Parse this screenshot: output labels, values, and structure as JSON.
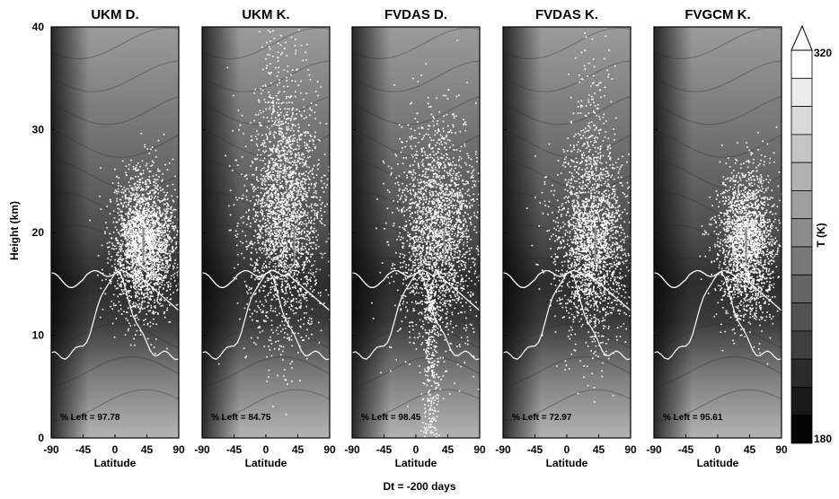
{
  "chart_data": {
    "type": "heatmap",
    "panels": [
      {
        "title": "UKM D.",
        "percent_left_label": "% Left = 97.78"
      },
      {
        "title": "UKM K.",
        "percent_left_label": "% Left = 84.75"
      },
      {
        "title": "FVDAS D.",
        "percent_left_label": "% Left = 98.45"
      },
      {
        "title": "FVDAS K.",
        "percent_left_label": "% Left = 72.97"
      },
      {
        "title": "FVGCM K.",
        "percent_left_label": "% Left = 95.61"
      }
    ],
    "xlabel": "Latitude",
    "ylabel": "Height (km)",
    "x_ticks": [
      "-90",
      "-45",
      "0",
      "45",
      "90"
    ],
    "x_tick_values": [
      -90,
      -45,
      0,
      45,
      90
    ],
    "y_ticks": [
      "0",
      "10",
      "20",
      "30",
      "40"
    ],
    "y_tick_values": [
      0,
      10,
      20,
      30,
      40
    ],
    "xlim": [
      -90,
      90
    ],
    "ylim": [
      0,
      40
    ],
    "colorbar": {
      "label": "T (K)",
      "min_label": "180",
      "max_label": "320",
      "min": 180,
      "max": 320,
      "levels": 14
    },
    "footer": "Dt = -200 days"
  }
}
